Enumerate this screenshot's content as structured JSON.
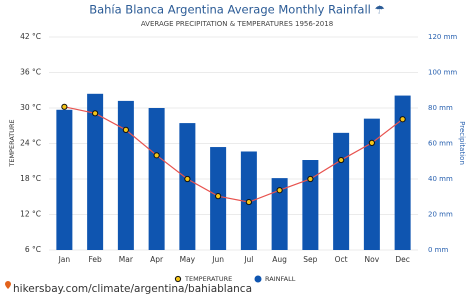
{
  "chart_data": {
    "type": "combo",
    "title": "Bahía Blanca Argentina Average Monthly Rainfall ☂",
    "subtitle": "AVERAGE PRECIPITATION & TEMPERATURES 1956-2018",
    "y_label": "TEMPERATURE",
    "y2_label": "Precipitation",
    "categories": [
      "Jan",
      "Feb",
      "Mar",
      "Apr",
      "May",
      "Jun",
      "Jul",
      "Aug",
      "Sep",
      "Oct",
      "Nov",
      "Dec"
    ],
    "series": [
      {
        "name": "TEMPERATURE",
        "type": "line",
        "axis": "y",
        "color": "#e8534f",
        "marker_color": "#f5c518",
        "values": [
          30.2,
          29.1,
          26.3,
          22,
          18,
          15.1,
          14.1,
          16.1,
          18,
          21.2,
          24.1,
          28.1
        ]
      },
      {
        "name": "RAINFALL",
        "type": "bar",
        "axis": "y2",
        "color": "#0f55b0",
        "values": [
          79,
          88,
          84,
          80,
          71.5,
          58,
          55.5,
          40.5,
          50.7,
          66,
          74,
          87
        ]
      }
    ],
    "ylim": [
      6,
      42
    ],
    "yticks": [
      {
        "value": 6,
        "label": "6 °C"
      },
      {
        "value": 12,
        "label": "12 °C"
      },
      {
        "value": 18,
        "label": "18 °C"
      },
      {
        "value": 24,
        "label": "24 °C"
      },
      {
        "value": 30,
        "label": "30 °C"
      },
      {
        "value": 36,
        "label": "36 °C"
      },
      {
        "value": 42,
        "label": "42 °C"
      }
    ],
    "y2lim": [
      0,
      120
    ],
    "y2ticks": [
      {
        "value": 0,
        "label": "0 mm"
      },
      {
        "value": 20,
        "label": "20 mm"
      },
      {
        "value": 40,
        "label": "40 mm"
      },
      {
        "value": 60,
        "label": "60 mm"
      },
      {
        "value": 80,
        "label": "80 mm"
      },
      {
        "value": 100,
        "label": "100 mm"
      },
      {
        "value": 120,
        "label": "120 mm"
      }
    ],
    "grid": true,
    "footer": "hikersbay.com/climate/argentina/bahiablanca"
  }
}
